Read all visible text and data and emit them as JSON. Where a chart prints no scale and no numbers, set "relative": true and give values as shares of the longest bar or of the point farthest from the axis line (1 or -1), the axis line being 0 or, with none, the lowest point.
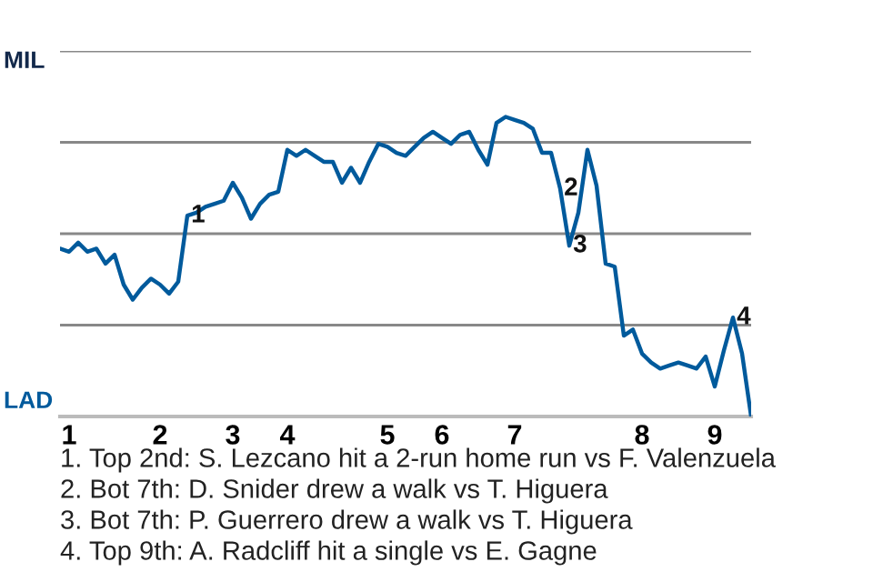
{
  "chart_data": {
    "type": "line",
    "relative": true,
    "categories": [
      null,
      "1",
      null,
      null,
      null,
      null,
      null,
      null,
      null,
      null,
      null,
      "2",
      null,
      null,
      null,
      null,
      null,
      null,
      null,
      "3",
      null,
      null,
      null,
      null,
      null,
      "4",
      null,
      null,
      null,
      null,
      null,
      null,
      null,
      null,
      null,
      null,
      "5",
      null,
      null,
      null,
      null,
      null,
      "6",
      null,
      null,
      null,
      null,
      null,
      null,
      null,
      "7",
      null,
      null,
      null,
      null,
      null,
      null,
      null,
      null,
      null,
      null,
      null,
      null,
      null,
      "8",
      null,
      null,
      null,
      null,
      null,
      null,
      null,
      "9",
      null,
      null,
      null,
      null
    ],
    "values": [
      0.56,
      0.55,
      0.58,
      0.55,
      0.56,
      0.51,
      0.54,
      0.44,
      0.39,
      0.43,
      0.46,
      0.44,
      0.41,
      0.45,
      0.67,
      0.68,
      0.7,
      0.71,
      0.72,
      0.78,
      0.73,
      0.66,
      0.71,
      0.74,
      0.75,
      0.89,
      0.87,
      0.89,
      0.87,
      0.85,
      0.85,
      0.78,
      0.83,
      0.78,
      0.85,
      0.91,
      0.9,
      0.88,
      0.87,
      0.9,
      0.93,
      0.95,
      0.93,
      0.91,
      0.94,
      0.95,
      0.89,
      0.84,
      0.98,
      1,
      0.99,
      0.98,
      0.96,
      0.88,
      0.88,
      0.76,
      0.57,
      0.68,
      0.89,
      0.77,
      0.51,
      0.5,
      0.27,
      0.29,
      0.21,
      0.18,
      0.16,
      0.17,
      0.18,
      0.17,
      0.16,
      0.2,
      0.1,
      0.22,
      0.33,
      0.21,
      0
    ],
    "color": "#005a9c",
    "grid": "y",
    "marker": "none",
    "line_style": "solid",
    "annotations": [
      "MIL",
      "LAD",
      {
        "text": "1",
        "y": 0.67
      },
      {
        "text": "2",
        "y": 0.76
      },
      {
        "text": "3",
        "y": 0.57
      },
      {
        "text": "4",
        "y": 0.33
      },
      "1. Top 2nd: S. Lezcano hit a 2-run home run vs F. Valenzuela",
      "2. Bot 7th: D. Snider drew a walk vs T. Higuera",
      "3. Bot 7th: P. Guerrero drew a walk vs T. Higuera",
      "4. Top 9th: A. Radcliff hit a single vs E. Gagne"
    ]
  }
}
